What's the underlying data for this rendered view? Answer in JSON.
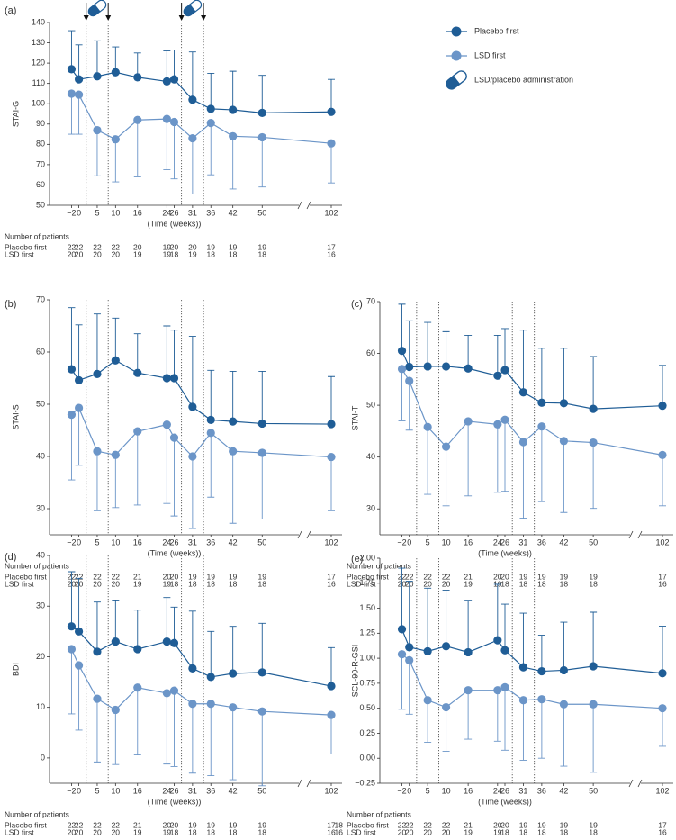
{
  "chart_data": [
    {
      "type": "line",
      "panel_label": "(a)",
      "ylabel": "STAI-G",
      "xlabel": "(Time (weeks))",
      "x": [
        -2,
        0,
        5,
        10,
        16,
        24,
        26,
        31,
        36,
        42,
        50,
        102
      ],
      "xticks": [
        {
          "value": -2,
          "label": "−2"
        },
        0,
        5,
        10,
        16,
        24,
        26,
        31,
        36,
        42,
        50,
        102
      ],
      "xlim": [
        -8,
        104
      ],
      "axis_break": [
        60,
        98
      ],
      "ylim": [
        50,
        140
      ],
      "yticks": [
        50,
        60,
        70,
        80,
        90,
        100,
        110,
        120,
        130,
        140
      ],
      "vlines": [
        2,
        8,
        28,
        34
      ],
      "arrows": true,
      "legend": "upper right",
      "administration_label": "LSD/placebo administration",
      "series": [
        {
          "name": "Placebo first",
          "color": "#1f5d96",
          "error_direction": "up",
          "values": [
            117,
            112,
            113.5,
            115.5,
            113,
            111,
            112,
            102,
            97.5,
            97,
            95.5,
            96
          ],
          "errors": [
            19,
            17,
            17.5,
            12.5,
            12,
            15,
            14.5,
            23.5,
            17.5,
            19,
            18.5,
            16
          ]
        },
        {
          "name": "LSD first",
          "color": "#6b95c8",
          "error_direction": "down",
          "values": [
            105,
            104.5,
            87,
            82.5,
            92,
            92.5,
            91,
            83,
            90.5,
            84,
            83.5,
            80.5
          ],
          "errors": [
            20,
            19.5,
            22.5,
            21,
            28,
            25,
            28,
            27.5,
            25.5,
            26,
            24.5,
            19.5
          ]
        }
      ],
      "patients": {
        "title": "Number of patients",
        "rows": [
          {
            "name": "Placebo first",
            "counts": [
              22,
              22,
              22,
              22,
              20,
              19,
              20,
              20,
              19,
              19,
              19,
              17
            ]
          },
          {
            "name": "LSD first",
            "counts": [
              20,
              20,
              20,
              20,
              19,
              19,
              18,
              19,
              18,
              18,
              18,
              16
            ]
          }
        ]
      }
    },
    {
      "type": "line",
      "panel_label": "(b)",
      "ylabel": "STAI-S",
      "xlabel": "(Time (weeks))",
      "x": [
        -2,
        0,
        5,
        10,
        16,
        24,
        26,
        31,
        36,
        42,
        50,
        102
      ],
      "xticks": [
        {
          "value": -2,
          "label": "−2"
        },
        0,
        5,
        10,
        16,
        24,
        26,
        31,
        36,
        42,
        50,
        102
      ],
      "xlim": [
        -8,
        104
      ],
      "axis_break": [
        60,
        98
      ],
      "ylim": [
        25,
        70
      ],
      "yticks": [
        30,
        40,
        50,
        60,
        70
      ],
      "vlines": [
        2,
        8,
        28,
        34
      ],
      "series": [
        {
          "name": "Placebo first",
          "color": "#1f5d96",
          "error_direction": "up",
          "values": [
            56.7,
            54.6,
            55.8,
            58.4,
            56,
            55,
            55,
            49.5,
            47,
            46.7,
            46.3,
            46.2
          ],
          "errors": [
            11.8,
            10.6,
            11.5,
            8.1,
            7.5,
            10,
            9.2,
            13.5,
            9.5,
            9.6,
            10,
            9.1
          ]
        },
        {
          "name": "LSD first",
          "color": "#6b95c8",
          "error_direction": "down",
          "values": [
            48,
            49.3,
            41,
            40.3,
            44.8,
            46.1,
            43.6,
            40,
            44.5,
            41,
            40.7,
            39.9
          ],
          "errors": [
            12.5,
            11,
            11.4,
            10.1,
            14.1,
            15.1,
            15,
            13.8,
            12.3,
            13.8,
            12.7,
            10.3
          ]
        }
      ],
      "patients": {
        "title": "Number of patients",
        "rows": [
          {
            "name": "Placebo first",
            "counts": [
              22,
              22,
              22,
              22,
              21,
              20,
              20,
              19,
              19,
              19,
              19,
              17
            ]
          },
          {
            "name": "LSD first",
            "counts": [
              20,
              20,
              20,
              20,
              19,
              19,
              18,
              18,
              18,
              18,
              18,
              16
            ]
          }
        ]
      }
    },
    {
      "type": "line",
      "panel_label": "(c)",
      "ylabel": "STAI-T",
      "xlabel": "(Time (weeks))",
      "x": [
        -2,
        0,
        5,
        10,
        16,
        24,
        26,
        31,
        36,
        42,
        50,
        102
      ],
      "xticks": [
        {
          "value": -2,
          "label": "−2"
        },
        0,
        5,
        10,
        16,
        24,
        26,
        31,
        36,
        42,
        50,
        102
      ],
      "xlim": [
        -8,
        104
      ],
      "axis_break": [
        60,
        98
      ],
      "ylim": [
        25,
        70
      ],
      "yticks": [
        30,
        40,
        50,
        60,
        70
      ],
      "vlines": [
        2,
        8,
        28,
        34
      ],
      "series": [
        {
          "name": "Placebo first",
          "color": "#1f5d96",
          "error_direction": "up",
          "values": [
            60.5,
            57.4,
            57.5,
            57.5,
            57.1,
            55.7,
            56.8,
            52.5,
            50.5,
            50.4,
            49.3,
            49.9
          ],
          "errors": [
            9,
            8.9,
            8.5,
            6.7,
            6.4,
            7.8,
            8,
            12,
            10.5,
            10.6,
            10.1,
            7.8
          ]
        },
        {
          "name": "LSD first",
          "color": "#6b95c8",
          "error_direction": "down",
          "values": [
            57,
            54.7,
            45.8,
            42,
            46.9,
            46.3,
            47.2,
            42.9,
            45.9,
            43.1,
            42.8,
            40.4
          ],
          "errors": [
            10,
            9.5,
            13,
            11.4,
            14.4,
            13.1,
            13.8,
            14.7,
            14.5,
            13.8,
            12.7,
            9.8
          ]
        }
      ],
      "patients": {
        "title": "Number of patients",
        "rows": [
          {
            "name": "Placebo first",
            "counts": [
              22,
              22,
              22,
              22,
              21,
              20,
              20,
              19,
              19,
              19,
              19,
              17
            ]
          },
          {
            "name": "LSD first",
            "counts": [
              20,
              20,
              20,
              20,
              19,
              19,
              18,
              18,
              18,
              18,
              18,
              16
            ]
          }
        ]
      }
    },
    {
      "type": "line",
      "panel_label": "(d)",
      "ylabel": "BDI",
      "xlabel": "(Time (weeks))",
      "x": [
        -2,
        0,
        5,
        10,
        16,
        24,
        26,
        31,
        36,
        42,
        50,
        102
      ],
      "xticks": [
        {
          "value": -2,
          "label": "−2"
        },
        0,
        5,
        10,
        16,
        24,
        26,
        31,
        36,
        42,
        50,
        102
      ],
      "xlim": [
        -8,
        104
      ],
      "axis_break": [
        60,
        98
      ],
      "ylim": [
        -5,
        40
      ],
      "yticks": [
        0,
        10,
        20,
        30,
        40
      ],
      "vlines": [
        2,
        8,
        28,
        34
      ],
      "series": [
        {
          "name": "Placebo first",
          "color": "#1f5d96",
          "error_direction": "up",
          "values": [
            26,
            25,
            21,
            23,
            21.5,
            23,
            22.7,
            17.7,
            16,
            16.7,
            16.9,
            14.2
          ],
          "errors": [
            10.8,
            10.5,
            9.8,
            8.2,
            7.7,
            8.7,
            7.1,
            11.3,
            9,
            9.3,
            9.7,
            7.6
          ]
        },
        {
          "name": "LSD first",
          "color": "#6b95c8",
          "error_direction": "down",
          "values": [
            21.5,
            18.3,
            11.7,
            9.5,
            13.9,
            12.8,
            13.3,
            10.7,
            10.7,
            10,
            9.2,
            8.5
          ],
          "errors": [
            12.8,
            12.8,
            12.5,
            10.8,
            13.3,
            14,
            15,
            13.7,
            14.2,
            14.3,
            14.7,
            7.7
          ]
        }
      ],
      "patients": {
        "title": "Number of patients",
        "rows": [
          {
            "name": "Placebo first",
            "counts": [
              22,
              22,
              22,
              22,
              21,
              20,
              20,
              19,
              19,
              19,
              19,
              17
            ]
          },
          {
            "name": "LSD first",
            "counts": [
              20,
              20,
              20,
              20,
              19,
              19,
              18,
              18,
              18,
              18,
              18,
              16
            ]
          }
        ]
      }
    },
    {
      "type": "line",
      "panel_label": "(e)",
      "ylabel": "SCL-90-R-GSI",
      "xlabel": "(Time (weeks))",
      "x": [
        -2,
        0,
        5,
        10,
        16,
        24,
        26,
        31,
        36,
        42,
        50,
        102
      ],
      "xticks": [
        {
          "value": -2,
          "label": "−2"
        },
        0,
        5,
        10,
        16,
        24,
        26,
        31,
        36,
        42,
        50,
        102
      ],
      "xlim": [
        -8,
        104
      ],
      "axis_break": [
        60,
        98
      ],
      "ylim": [
        -0.25,
        2.0
      ],
      "yticks": [
        {
          "value": -0.25,
          "label": "−0.25"
        },
        {
          "value": 0,
          "label": "0.00"
        },
        0.25,
        {
          "value": 0.5,
          "label": "0.50"
        },
        0.75,
        {
          "value": 1,
          "label": "1.00"
        },
        1.25,
        {
          "value": 1.5,
          "label": "1.50"
        },
        1.75,
        {
          "value": 2,
          "label": "2.00"
        }
      ],
      "vlines": [
        2,
        8,
        28,
        34
      ],
      "series": [
        {
          "name": "Placebo first",
          "color": "#1f5d96",
          "error_direction": "up",
          "values": [
            1.29,
            1.11,
            1.07,
            1.12,
            1.06,
            1.18,
            1.08,
            0.91,
            0.87,
            0.88,
            0.92,
            0.85
          ],
          "errors": [
            0.61,
            0.66,
            0.63,
            0.56,
            0.52,
            0.56,
            0.46,
            0.54,
            0.36,
            0.48,
            0.54,
            0.47
          ]
        },
        {
          "name": "LSD first",
          "color": "#6b95c8",
          "error_direction": "down",
          "values": [
            1.04,
            0.98,
            0.58,
            0.51,
            0.68,
            0.68,
            0.71,
            0.58,
            0.59,
            0.54,
            0.54,
            0.5
          ],
          "errors": [
            0.55,
            0.54,
            0.42,
            0.44,
            0.49,
            0.51,
            0.63,
            0.6,
            0.59,
            0.62,
            0.68,
            0.38
          ]
        }
      ],
      "patients": {
        "title": "Number of patients",
        "rows": [
          {
            "prefix": "18",
            "name": "Placebo first",
            "counts": [
              22,
              22,
              22,
              22,
              21,
              20,
              20,
              19,
              19,
              19,
              19,
              17
            ]
          },
          {
            "prefix": "16",
            "name": "LSD first",
            "counts": [
              20,
              20,
              20,
              20,
              19,
              19,
              18,
              18,
              18,
              18,
              18,
              16
            ]
          }
        ]
      }
    }
  ]
}
